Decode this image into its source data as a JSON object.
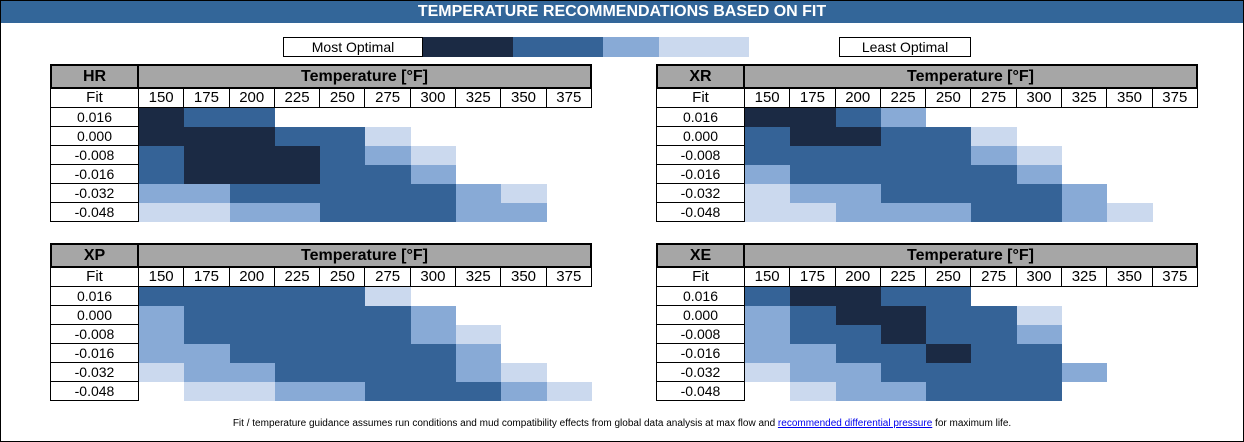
{
  "title": "TEMPERATURE RECOMMENDATIONS BASED ON FIT",
  "legend": {
    "left_label": "Most Optimal",
    "right_label": "Least Optimal",
    "levels": [
      {
        "level": 4,
        "color": "#1b2a44"
      },
      {
        "level": 3,
        "color": "#356397"
      },
      {
        "level": 2,
        "color": "#88aad6"
      },
      {
        "level": 1,
        "color": "#cbd9ee"
      },
      {
        "level": 0,
        "color": "#ffffff"
      }
    ]
  },
  "footnote": {
    "before": "Fit / temperature guidance assumes run conditions and mud compatibility effects from global data analysis at max flow and ",
    "link": "recommended differential pressure",
    "after": " for maximum life."
  },
  "chart_data": [
    {
      "type": "heatmap",
      "name": "HR",
      "xlabel": "Temperature [°F]",
      "ylabel": "Fit",
      "x": [
        "150",
        "175",
        "200",
        "225",
        "250",
        "275",
        "300",
        "325",
        "350",
        "375"
      ],
      "y": [
        "0.016",
        "0.000",
        "-0.008",
        "-0.016",
        "-0.032",
        "-0.048"
      ],
      "values": [
        [
          4,
          3,
          3,
          0,
          0,
          0,
          0,
          0,
          0,
          0
        ],
        [
          4,
          4,
          4,
          3,
          3,
          1,
          0,
          0,
          0,
          0
        ],
        [
          3,
          4,
          4,
          4,
          3,
          2,
          1,
          0,
          0,
          0
        ],
        [
          3,
          4,
          4,
          4,
          3,
          3,
          2,
          0,
          0,
          0
        ],
        [
          2,
          2,
          3,
          3,
          3,
          3,
          3,
          2,
          1,
          0
        ],
        [
          1,
          1,
          2,
          2,
          3,
          3,
          3,
          2,
          2,
          0
        ]
      ]
    },
    {
      "type": "heatmap",
      "name": "XR",
      "xlabel": "Temperature [°F]",
      "ylabel": "Fit",
      "x": [
        "150",
        "175",
        "200",
        "225",
        "250",
        "275",
        "300",
        "325",
        "350",
        "375"
      ],
      "y": [
        "0.016",
        "0.000",
        "-0.008",
        "-0.016",
        "-0.032",
        "-0.048"
      ],
      "values": [
        [
          4,
          4,
          3,
          2,
          0,
          0,
          0,
          0,
          0,
          0
        ],
        [
          3,
          4,
          4,
          3,
          3,
          1,
          0,
          0,
          0,
          0
        ],
        [
          3,
          3,
          3,
          3,
          3,
          2,
          1,
          0,
          0,
          0
        ],
        [
          2,
          3,
          3,
          3,
          3,
          3,
          2,
          0,
          0,
          0
        ],
        [
          1,
          2,
          2,
          3,
          3,
          3,
          3,
          2,
          0,
          0
        ],
        [
          1,
          1,
          2,
          2,
          2,
          3,
          3,
          2,
          1,
          0
        ]
      ]
    },
    {
      "type": "heatmap",
      "name": "XP",
      "xlabel": "Temperature [°F]",
      "ylabel": "Fit",
      "x": [
        "150",
        "175",
        "200",
        "225",
        "250",
        "275",
        "300",
        "325",
        "350",
        "375"
      ],
      "y": [
        "0.016",
        "0.000",
        "-0.008",
        "-0.016",
        "-0.032",
        "-0.048"
      ],
      "values": [
        [
          3,
          3,
          3,
          3,
          3,
          1,
          0,
          0,
          0,
          0
        ],
        [
          2,
          3,
          3,
          3,
          3,
          3,
          2,
          0,
          0,
          0
        ],
        [
          2,
          3,
          3,
          3,
          3,
          3,
          2,
          1,
          0,
          0
        ],
        [
          2,
          2,
          3,
          3,
          3,
          3,
          3,
          2,
          0,
          0
        ],
        [
          1,
          2,
          2,
          3,
          3,
          3,
          3,
          2,
          1,
          0
        ],
        [
          0,
          1,
          1,
          2,
          2,
          3,
          3,
          3,
          2,
          1
        ]
      ]
    },
    {
      "type": "heatmap",
      "name": "XE",
      "xlabel": "Temperature [°F]",
      "ylabel": "Fit",
      "x": [
        "150",
        "175",
        "200",
        "225",
        "250",
        "275",
        "300",
        "325",
        "350",
        "375"
      ],
      "y": [
        "0.016",
        "0.000",
        "-0.008",
        "-0.016",
        "-0.032",
        "-0.048"
      ],
      "values": [
        [
          3,
          4,
          4,
          3,
          3,
          0,
          0,
          0,
          0,
          0
        ],
        [
          2,
          3,
          4,
          4,
          3,
          3,
          1,
          0,
          0,
          0
        ],
        [
          2,
          3,
          3,
          4,
          3,
          3,
          2,
          0,
          0,
          0
        ],
        [
          2,
          2,
          3,
          3,
          4,
          3,
          3,
          0,
          0,
          0
        ],
        [
          1,
          2,
          2,
          3,
          3,
          3,
          3,
          2,
          0,
          0
        ],
        [
          0,
          1,
          2,
          2,
          3,
          3,
          3,
          0,
          0,
          0
        ]
      ]
    }
  ]
}
